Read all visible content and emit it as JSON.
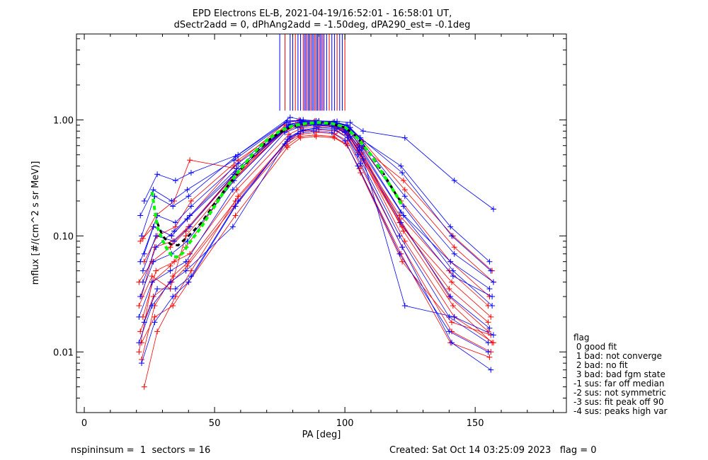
{
  "chart_data": {
    "type": "line",
    "title": "EPD Electrons EL-B, 2021-04-19/16:52:01 - 16:58:01 UT,",
    "subtitle": "dSectr2add = 0, dPhAng2add = -1.50deg, dPA290_est=  -0.1deg",
    "xlabel": "PA [deg]",
    "ylabel": "mflux [#/(cm^2 s sr MeV)]",
    "xlim": [
      -3,
      185
    ],
    "ylim": [
      0.003,
      5.5
    ],
    "yscale": "log",
    "x_ticks": [
      0,
      50,
      100,
      150
    ],
    "x_tick_labels": [
      "0",
      "50",
      "100",
      "150"
    ],
    "y_ticks": [
      0.01,
      0.1,
      1.0
    ],
    "y_tick_labels": [
      "0.01",
      "0.10",
      "1.00"
    ],
    "grid": false,
    "colors": {
      "red": "#ff0000",
      "blue": "#0000ff",
      "fit_green": "#00ff00",
      "median_black": "#000000"
    },
    "fit_curve": [
      [
        26,
        0.24
      ],
      [
        27,
        0.17
      ],
      [
        28,
        0.12
      ],
      [
        30,
        0.092
      ],
      [
        32,
        0.075
      ],
      [
        34,
        0.066
      ],
      [
        36,
        0.066
      ],
      [
        38,
        0.072
      ],
      [
        40,
        0.085
      ],
      [
        45,
        0.12
      ],
      [
        50,
        0.18
      ],
      [
        55,
        0.27
      ],
      [
        60,
        0.38
      ],
      [
        65,
        0.52
      ],
      [
        70,
        0.67
      ],
      [
        75,
        0.8
      ],
      [
        80,
        0.89
      ],
      [
        85,
        0.93
      ],
      [
        90,
        0.95
      ],
      [
        95,
        0.93
      ],
      [
        100,
        0.87
      ],
      [
        105,
        0.69
      ],
      [
        110,
        0.5
      ],
      [
        115,
        0.33
      ],
      [
        120,
        0.22
      ],
      [
        122,
        0.18
      ]
    ],
    "median_curve": [
      [
        28,
        0.13
      ],
      [
        30,
        0.1
      ],
      [
        33,
        0.085
      ],
      [
        36,
        0.083
      ],
      [
        40,
        0.1
      ],
      [
        45,
        0.13
      ],
      [
        50,
        0.19
      ],
      [
        55,
        0.27
      ],
      [
        60,
        0.37
      ],
      [
        65,
        0.5
      ],
      [
        70,
        0.65
      ],
      [
        75,
        0.78
      ],
      [
        80,
        0.88
      ],
      [
        85,
        0.92
      ],
      [
        90,
        0.94
      ],
      [
        95,
        0.92
      ],
      [
        100,
        0.86
      ],
      [
        105,
        0.7
      ],
      [
        110,
        0.5
      ],
      [
        115,
        0.34
      ],
      [
        120,
        0.22
      ],
      [
        122,
        0.19
      ]
    ],
    "profile_pa": [
      22,
      27,
      34,
      40,
      58,
      78,
      83,
      89,
      96,
      101,
      106,
      122,
      141,
      156
    ],
    "series": [
      {
        "color": "red",
        "values": [
          0.01,
          0.04,
          0.055,
          0.08,
          0.3,
          0.9,
          0.95,
          0.96,
          0.93,
          0.82,
          0.6,
          0.14,
          0.03,
          0.015
        ]
      },
      {
        "color": "red",
        "values": [
          0.03,
          0.08,
          0.09,
          0.12,
          0.35,
          0.85,
          0.9,
          0.9,
          0.88,
          0.75,
          0.5,
          0.12,
          0.04,
          0.02
        ]
      },
      {
        "color": "red",
        "values": [
          0.005,
          0.015,
          0.03,
          0.05,
          0.22,
          0.7,
          0.8,
          0.82,
          0.8,
          0.7,
          0.45,
          0.09,
          0.02,
          0.012
        ]
      },
      {
        "color": "red",
        "values": [
          0.09,
          0.12,
          0.1,
          0.14,
          0.4,
          0.95,
          1.0,
          0.98,
          0.95,
          0.85,
          0.62,
          0.2,
          0.06,
          0.03
        ]
      },
      {
        "color": "red",
        "values": [
          0.02,
          0.05,
          0.06,
          0.07,
          0.25,
          0.75,
          0.85,
          0.88,
          0.86,
          0.76,
          0.52,
          0.11,
          0.025,
          0.012
        ]
      },
      {
        "color": "red",
        "values": [
          0.04,
          0.06,
          0.08,
          0.11,
          0.32,
          0.8,
          0.88,
          0.9,
          0.9,
          0.8,
          0.55,
          0.15,
          0.05,
          0.025
        ]
      },
      {
        "color": "red",
        "values": [
          0.0086,
          0.025,
          0.045,
          0.06,
          0.2,
          0.65,
          0.75,
          0.78,
          0.76,
          0.66,
          0.4,
          0.08,
          0.015,
          0.01
        ]
      },
      {
        "color": "red",
        "values": [
          0.06,
          0.1,
          0.12,
          0.2,
          0.45,
          0.92,
          0.97,
          0.97,
          0.94,
          0.86,
          0.65,
          0.25,
          0.08,
          0.04
        ]
      },
      {
        "color": "red",
        "values": [
          0.015,
          0.03,
          0.04,
          0.055,
          0.18,
          0.6,
          0.72,
          0.74,
          0.72,
          0.62,
          0.38,
          0.07,
          0.012,
          0.009
        ]
      },
      {
        "color": "red",
        "values": [
          0.095,
          0.15,
          0.2,
          0.45,
          0.38,
          0.88,
          0.93,
          0.94,
          0.92,
          0.8,
          0.58,
          0.3,
          0.1,
          0.05
        ]
      },
      {
        "color": "red",
        "values": [
          0.025,
          0.045,
          0.035,
          0.1,
          0.3,
          0.82,
          0.9,
          0.92,
          0.9,
          0.78,
          0.52,
          0.13,
          0.035,
          0.018
        ]
      },
      {
        "color": "red",
        "values": [
          0.012,
          0.02,
          0.025,
          0.04,
          0.15,
          0.58,
          0.7,
          0.72,
          0.7,
          0.6,
          0.35,
          0.06,
          0.018,
          0.014
        ]
      },
      {
        "color": "blue",
        "values": [
          0.2,
          0.34,
          0.3,
          0.35,
          0.5,
          1.05,
          1.0,
          0.98,
          0.97,
          0.95,
          0.8,
          0.7,
          0.3,
          0.17
        ]
      },
      {
        "color": "blue",
        "values": [
          0.15,
          0.25,
          0.2,
          0.25,
          0.45,
          0.95,
          0.98,
          0.96,
          0.95,
          0.9,
          0.7,
          0.4,
          0.12,
          0.06
        ]
      },
      {
        "color": "blue",
        "values": [
          0.05,
          0.1,
          0.09,
          0.12,
          0.36,
          0.88,
          0.92,
          0.94,
          0.92,
          0.82,
          0.56,
          0.15,
          0.045,
          0.03
        ]
      },
      {
        "color": "blue",
        "values": [
          0.02,
          0.04,
          0.05,
          0.06,
          0.25,
          0.78,
          0.86,
          0.9,
          0.88,
          0.78,
          0.5,
          0.1,
          0.02,
          0.012
        ]
      },
      {
        "color": "blue",
        "values": [
          0.008,
          0.018,
          0.03,
          0.04,
          0.18,
          0.68,
          0.8,
          0.84,
          0.82,
          0.7,
          0.42,
          0.08,
          0.012,
          0.007
        ]
      },
      {
        "color": "blue",
        "values": [
          0.07,
          0.15,
          0.13,
          0.18,
          0.42,
          0.92,
          0.96,
          0.96,
          0.94,
          0.86,
          0.62,
          0.22,
          0.07,
          0.04
        ]
      },
      {
        "color": "blue",
        "values": [
          0.03,
          0.06,
          0.07,
          0.09,
          0.3,
          0.84,
          0.9,
          0.9,
          0.9,
          0.8,
          0.54,
          0.13,
          0.03,
          0.016
        ]
      },
      {
        "color": "blue",
        "values": [
          0.04,
          0.08,
          0.11,
          0.15,
          0.38,
          0.9,
          0.94,
          0.95,
          0.93,
          0.84,
          0.6,
          0.18,
          0.05,
          0.025
        ]
      },
      {
        "color": "blue",
        "values": [
          0.012,
          0.025,
          0.04,
          0.05,
          0.12,
          0.62,
          0.76,
          0.8,
          0.78,
          0.66,
          0.4,
          0.07,
          0.015,
          0.01
        ]
      },
      {
        "color": "blue",
        "values": [
          0.1,
          0.22,
          0.18,
          0.22,
          0.48,
          0.98,
          0.99,
          0.98,
          0.96,
          0.9,
          0.7,
          0.35,
          0.1,
          0.05
        ]
      },
      {
        "color": "blue",
        "values": [
          0.018,
          0.035,
          0.035,
          0.045,
          0.2,
          0.72,
          0.82,
          0.86,
          0.84,
          0.72,
          0.46,
          0.025,
          0.02,
          0.014
        ]
      },
      {
        "color": "blue",
        "values": [
          0.06,
          0.12,
          0.1,
          0.14,
          0.34,
          0.86,
          0.92,
          0.92,
          0.9,
          0.82,
          0.58,
          0.16,
          0.06,
          0.035
        ]
      }
    ],
    "legend": {
      "placement": "bottom-right, outside plot",
      "title": "flag",
      "entries": [
        " 0 good fit",
        " 1 bad: not converge",
        " 2 bad: no fit",
        " 3 bad: bad fgm state",
        "-1 sus: far off median",
        "-2 sus: not symmetric",
        "-3 sus: fit peak off 90",
        "-4 sus: peaks high var"
      ]
    },
    "footer_left": "nspininsum =  1  sectors = 16",
    "footer_right": "Created: Sat Oct 14 03:25:09 2023   flag = 0"
  }
}
